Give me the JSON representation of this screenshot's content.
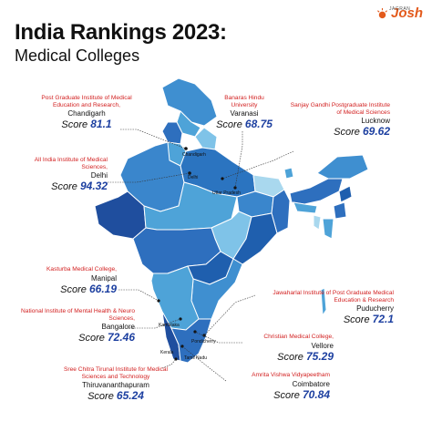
{
  "header": {
    "title": "India Rankings 2023:",
    "subtitle": "Medical Colleges"
  },
  "logo": {
    "small_text": "JAGRAN",
    "word": "Josh"
  },
  "score_label": "Score",
  "colleges": [
    {
      "institute": "Post Graduate Institute of Medical Education and Research,",
      "city": "Chandigarh",
      "score": "81.1"
    },
    {
      "institute": "Banaras Hindu University",
      "city": "Varanasi",
      "score": "68.75"
    },
    {
      "institute": "Sanjay Gandhi Postgraduate Institute of Medical Sciences",
      "city": "Lucknow",
      "score": "69.62"
    },
    {
      "institute": "All India Institute of Medical Sciences,",
      "city": "Delhi",
      "score": "94.32"
    },
    {
      "institute": "Kasturba Medical College,",
      "city": "Manipal",
      "score": "66.19"
    },
    {
      "institute": "Jawaharlal Institute of Post Graduate Medical Education & Research",
      "city": "Puducherry",
      "score": "72.1"
    },
    {
      "institute": "National Institute of Mental Health & Neuro Sciences,",
      "city": "Bangalore",
      "score": "72.46"
    },
    {
      "institute": "Christian Medical College,",
      "city": "Vellore",
      "score": "75.29"
    },
    {
      "institute": "Amrita Vishwa Vidyapeetham",
      "city": "Coimbatore",
      "score": "70.84"
    },
    {
      "institute": "Sree Chitra Tirunal Institute for Medical Sciences and Technology",
      "city": "Thiruvananthapuram",
      "score": "65.24"
    }
  ],
  "map_labels": {
    "chandigarh": "Chandigarh",
    "delhi": "Delhi",
    "uttar_pradesh": "Uttar Pradesh",
    "karnataka": "Karnataka",
    "pondicherry": "Pondicherry",
    "kerala": "Kerala",
    "tamil_nadu": "Tamil Nadu"
  },
  "colors": {
    "title": "#111111",
    "institute": "#d21f1f",
    "score_value": "#1c3fa0",
    "logo": "#e35a1c",
    "state_light": "#a9d8ee",
    "state_mid": "#4ea3d8",
    "state_dark": "#1f5fae",
    "state_navy": "#173b86"
  }
}
